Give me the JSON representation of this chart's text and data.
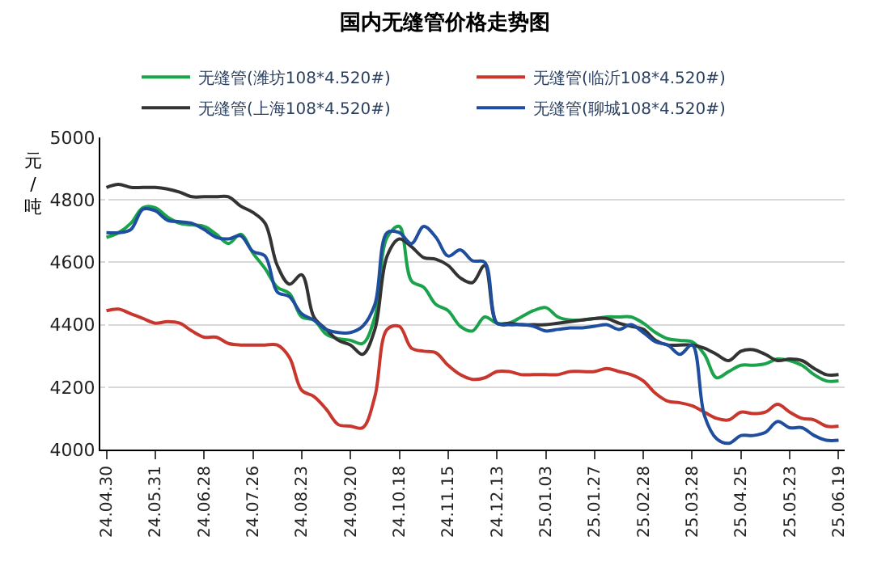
{
  "chart_data": {
    "type": "line",
    "title": "国内无缝管价格走势图",
    "ylabel": "元/吨",
    "categories": [
      "24.04.30",
      null,
      null,
      null,
      "24.05.31",
      null,
      null,
      null,
      "24.06.28",
      null,
      null,
      null,
      "24.07.26",
      null,
      null,
      null,
      "24.08.23",
      null,
      null,
      null,
      "24.09.20",
      null,
      null,
      null,
      "24.10.18",
      null,
      null,
      null,
      "24.11.15",
      null,
      null,
      null,
      "24.12.13",
      null,
      null,
      null,
      "25.01.03",
      null,
      null,
      null,
      "25.01.27",
      null,
      null,
      null,
      "25.02.28",
      null,
      null,
      null,
      "25.03.28",
      null,
      null,
      null,
      "25.04.25",
      null,
      null,
      null,
      "25.05.23",
      null,
      null,
      null,
      "25.06.19"
    ],
    "series": [
      {
        "name": "无缝管(潍坊108*4.520#)",
        "color": "#1aa34a",
        "values": [
          4680,
          4695,
          4725,
          4775,
          4775,
          4745,
          4725,
          4720,
          4715,
          4690,
          4660,
          4690,
          4630,
          4580,
          4520,
          4500,
          4425,
          4415,
          4370,
          4355,
          4350,
          4340,
          4425,
          4680,
          4715,
          4540,
          4520,
          4465,
          4445,
          4395,
          4380,
          4425,
          4405,
          4405,
          4425,
          4445,
          4455,
          4425,
          4415,
          4415,
          4420,
          4425,
          4425,
          4425,
          4405,
          4375,
          4355,
          4350,
          4345,
          4305,
          4230,
          4250,
          4270,
          4270,
          4275,
          4290,
          4285,
          4270,
          4240,
          4220,
          4220
        ]
      },
      {
        "name": "无缝管(临沂108*4.520#)",
        "color": "#c8372d",
        "values": [
          4445,
          4450,
          4435,
          4420,
          4405,
          4410,
          4405,
          4380,
          4360,
          4360,
          4340,
          4335,
          4335,
          4335,
          4335,
          4295,
          4190,
          4170,
          4130,
          4080,
          4075,
          4070,
          4170,
          4385,
          4395,
          4325,
          4315,
          4310,
          4270,
          4240,
          4225,
          4230,
          4250,
          4250,
          4240,
          4240,
          4240,
          4240,
          4250,
          4250,
          4250,
          4260,
          4250,
          4240,
          4220,
          4180,
          4155,
          4150,
          4140,
          4120,
          4100,
          4095,
          4120,
          4115,
          4120,
          4145,
          4120,
          4100,
          4095,
          4075,
          4075
        ]
      },
      {
        "name": "无缝管(上海108*4.520#)",
        "color": "#333333",
        "values": [
          4840,
          4850,
          4840,
          4840,
          4840,
          4835,
          4825,
          4810,
          4810,
          4810,
          4810,
          4780,
          4760,
          4725,
          4590,
          4530,
          4560,
          4425,
          4385,
          4350,
          4335,
          4305,
          4385,
          4620,
          4675,
          4650,
          4615,
          4610,
          4590,
          4550,
          4535,
          4590,
          4405,
          4405,
          4400,
          4400,
          4400,
          4405,
          4410,
          4415,
          4420,
          4420,
          4405,
          4395,
          4385,
          4350,
          4335,
          4335,
          4335,
          4325,
          4305,
          4285,
          4315,
          4320,
          4305,
          4285,
          4290,
          4285,
          4260,
          4240,
          4240
        ]
      },
      {
        "name": "无缝管(聊城108*4.520#)",
        "color": "#1f4e9e",
        "values": [
          4695,
          4695,
          4705,
          4770,
          4765,
          4735,
          4730,
          4725,
          4705,
          4680,
          4675,
          4685,
          4635,
          4620,
          4505,
          4490,
          4435,
          4415,
          4385,
          4375,
          4375,
          4395,
          4465,
          4695,
          4695,
          4660,
          4715,
          4680,
          4620,
          4640,
          4605,
          4600,
          4405,
          4400,
          4400,
          4395,
          4380,
          4385,
          4390,
          4390,
          4395,
          4400,
          4385,
          4400,
          4375,
          4345,
          4335,
          4305,
          4335,
          4110,
          4035,
          4020,
          4045,
          4045,
          4055,
          4090,
          4070,
          4070,
          4045,
          4030,
          4030
        ]
      }
    ],
    "ylim": [
      4000,
      5000
    ],
    "yticks": [
      4000,
      4200,
      4400,
      4600,
      4800,
      5000
    ],
    "grid": "y",
    "legend": "top",
    "marker": "none",
    "line_style": "solid"
  }
}
